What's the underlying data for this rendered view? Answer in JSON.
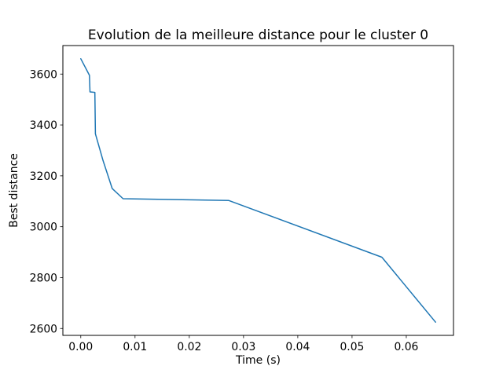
{
  "figure": {
    "background": "#ffffff",
    "spine_color": "#000000",
    "tick_color": "#000000"
  },
  "chart_data": {
    "type": "line",
    "title": "Evolution de la meilleure distance pour le cluster 0",
    "xlabel": "Time (s)",
    "ylabel": "Best distance",
    "grid": false,
    "legend_position": "none",
    "xlim": [
      -0.0033,
      0.0687
    ],
    "ylim": [
      2573,
      3712
    ],
    "xticks": {
      "values": [
        0.0,
        0.01,
        0.02,
        0.03,
        0.04,
        0.05,
        0.06
      ],
      "labels": [
        "0.00",
        "0.01",
        "0.02",
        "0.03",
        "0.04",
        "0.05",
        "0.06"
      ]
    },
    "yticks": {
      "values": [
        2600,
        2800,
        3000,
        3200,
        3400,
        3600
      ],
      "labels": [
        "2600",
        "2800",
        "3000",
        "3200",
        "3400",
        "3600"
      ]
    },
    "series": [
      {
        "name": "best-distance-cluster-0",
        "color": "#1f77b4",
        "line_width": 1.5,
        "points": [
          [
            0.0,
            3660
          ],
          [
            0.0016,
            3595
          ],
          [
            0.0017,
            3530
          ],
          [
            0.0026,
            3528
          ],
          [
            0.0027,
            3365
          ],
          [
            0.0041,
            3260
          ],
          [
            0.0058,
            3150
          ],
          [
            0.0078,
            3110
          ],
          [
            0.0273,
            3103
          ],
          [
            0.0555,
            2880
          ],
          [
            0.0654,
            2625
          ]
        ]
      }
    ]
  }
}
